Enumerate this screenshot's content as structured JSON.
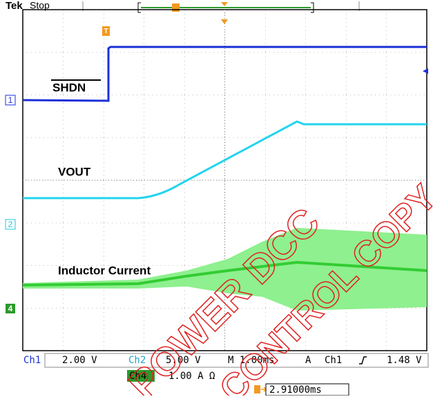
{
  "header": {
    "brand": "Tek",
    "status": "Stop"
  },
  "traces": {
    "shdn": "SHDN",
    "vout": "VOUT",
    "inductor": "Inductor Current"
  },
  "channel_markers": [
    "1",
    "2",
    "4"
  ],
  "trigger_marker": "T",
  "status_bar": {
    "ch1": "Ch1",
    "ch1_scale": "2.00 V",
    "ch2": "Ch2",
    "ch2_scale": "5.00 V",
    "timebase": "M 1.00ms",
    "trigger_mode": "A",
    "trigger_source": "Ch1",
    "trigger_level": "1.48 V",
    "ch4": "Ch4",
    "ch4_scale": "1.00 A Ω",
    "position": "2.91000ms"
  },
  "watermark": [
    "POWER DCC",
    "CONTROL COPY"
  ]
}
